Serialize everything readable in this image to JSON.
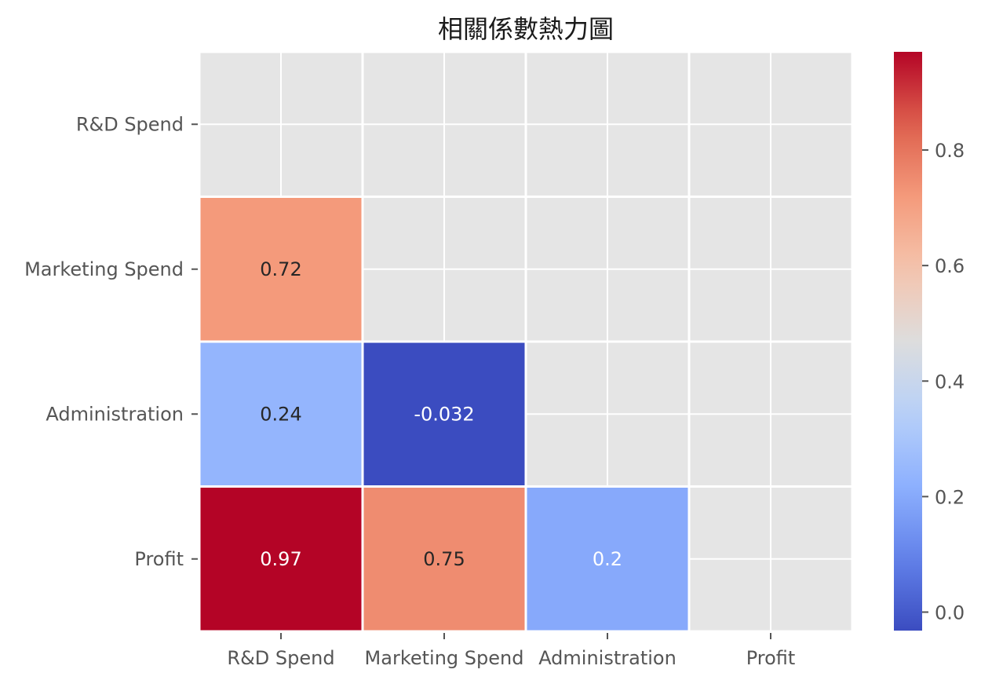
{
  "chart_data": {
    "type": "heatmap",
    "title": "相關係數熱力圖",
    "row_labels": [
      "R&D Spend",
      "Marketing Spend",
      "Administration",
      "Profit"
    ],
    "col_labels": [
      "R&D Spend",
      "Marketing Spend",
      "Administration",
      "Profit"
    ],
    "values": [
      [
        null,
        null,
        null,
        null
      ],
      [
        0.72,
        null,
        null,
        null
      ],
      [
        0.24,
        -0.032,
        null,
        null
      ],
      [
        0.97,
        0.75,
        0.2,
        null
      ]
    ],
    "value_labels": [
      [
        null,
        null,
        null,
        null
      ],
      [
        "0.72",
        null,
        null,
        null
      ],
      [
        "0.24",
        "-0.032",
        null,
        null
      ],
      [
        "0.97",
        "0.75",
        "0.2",
        null
      ]
    ],
    "masked": "upper triangle and diagonal",
    "colormap": "coolwarm",
    "vmin": -0.032,
    "vmax": 0.97,
    "colorbar_ticks": [
      0.0,
      0.2,
      0.4,
      0.6,
      0.8
    ],
    "colorbar_tick_labels": [
      "0.0",
      "0.2",
      "0.4",
      "0.6",
      "0.8"
    ],
    "grid": true,
    "colors": {
      "background": "#e5e5e5",
      "gridline": "#ffffff",
      "low": "#3b4cc0",
      "mid": "#dddddd",
      "high": "#b40426"
    }
  }
}
